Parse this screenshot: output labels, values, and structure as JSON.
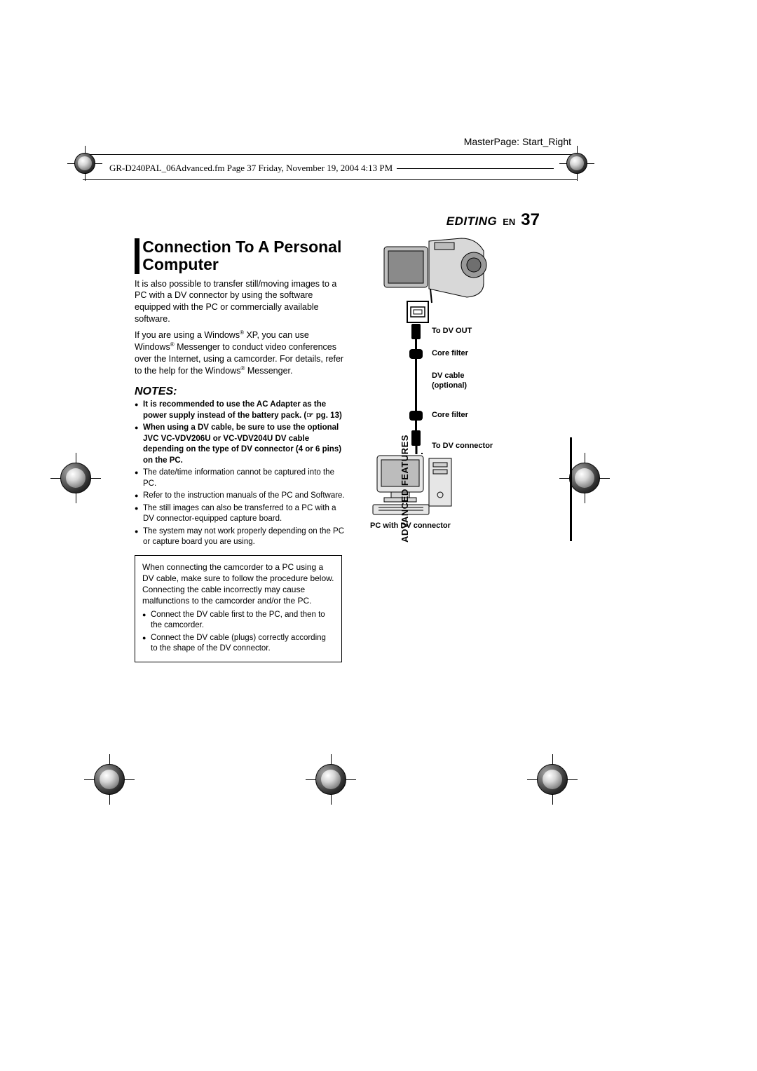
{
  "colors": {
    "page_bg": "#ffffff",
    "text": "#000000",
    "rule": "#000000",
    "diagram_fill_light": "#d8d8d8",
    "diagram_fill_mid": "#bfbfbf"
  },
  "typography": {
    "body_pt": 9,
    "title_pt": 17,
    "pagenum_pt": 18,
    "notes_heading_pt": 12,
    "label_pt": 8.5,
    "family": "Arial"
  },
  "header": {
    "masterpage": "MasterPage: Start_Right",
    "pagepath": "GR-D240PAL_06Advanced.fm  Page 37  Friday, November 19, 2004  4:13 PM"
  },
  "section": {
    "name": "EDITING",
    "lang": "EN",
    "page_number": "37",
    "title": "Connection To A Personal Computer"
  },
  "intro": {
    "p1": "It is also possible to transfer still/moving images to a PC with a DV connector by using the software equipped with the PC or commercially available software.",
    "p2a": "If you are using a Windows",
    "p2b": " XP, you can use Windows",
    "p2c": " Messenger to conduct video conferences over the Internet, using a camcorder. For details, refer to the help for the Windows",
    "p2d": " Messenger.",
    "reg": "®"
  },
  "notes": {
    "heading": "NOTES:",
    "items": [
      {
        "bold": true,
        "text": "It is recommended to use the AC Adapter as the power supply instead of the battery pack. (☞ pg. 13)"
      },
      {
        "bold": true,
        "text": "When using a DV cable, be sure to use the optional JVC VC-VDV206U or VC-VDV204U DV cable depending on the type of DV connector (4 or 6 pins) on the PC."
      },
      {
        "bold": false,
        "text": "The date/time information cannot be captured into the PC."
      },
      {
        "bold": false,
        "text": "Refer to the instruction manuals of the PC and Software."
      },
      {
        "bold": false,
        "text": "The still images can also be transferred to a PC with a DV connector-equipped capture board."
      },
      {
        "bold": false,
        "text": "The system may not work properly depending on the PC or capture board you are using."
      }
    ]
  },
  "connect_box": {
    "intro": "When connecting the camcorder to a PC using a DV cable, make sure to follow the procedure below. Connecting the cable incorrectly may cause malfunctions to the camcorder and/or the PC.",
    "items": [
      "Connect the DV cable first to the PC, and then to the camcorder.",
      "Connect the DV cable (plugs) correctly according to the shape of the DV connector."
    ]
  },
  "diagram_labels": {
    "dv_out": "To DV OUT",
    "core_filter_top": "Core filter",
    "dv_cable": "DV cable (optional)",
    "core_filter_bottom": "Core filter",
    "dv_connector": "To DV connector",
    "pc_label": "PC with DV connector",
    "port_glyph": "DV"
  },
  "side_tab": "ADVANCED FEATURES"
}
